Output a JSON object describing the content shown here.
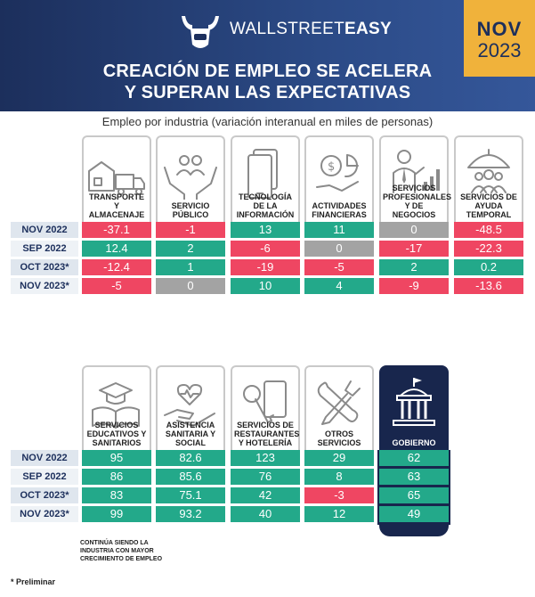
{
  "brand": {
    "prefix": "WALLSTREET",
    "suffix": "EASY"
  },
  "date": {
    "month": "NOV",
    "year": "2023"
  },
  "title": [
    "CREACIÓN DE EMPLEO SE ACELERA",
    "Y SUPERAN LAS EXPECTATIVAS"
  ],
  "subtitle": "Empleo por industria (variación interanual en miles de personas)",
  "row_labels": [
    "NOV 2022",
    "SEP 2022",
    "OCT 2023*",
    "NOV 2023*"
  ],
  "note": "Continúa siendo la industria con mayor crecimiento de empleo",
  "footnote": "* Preliminar",
  "colors": {
    "positive": "#23a98a",
    "negative": "#ef4662",
    "zero": "#a3a3a3",
    "navy": "#18264d",
    "gold": "#f0b23b"
  },
  "chart_data": {
    "type": "table",
    "rows": [
      "NOV 2022",
      "SEP 2022",
      "OCT 2023*",
      "NOV 2023*"
    ],
    "groups": [
      {
        "industries": [
          {
            "label": "Transporte y almacenaje",
            "icon": "truck-warehouse-icon",
            "values": [
              "-37.1",
              "12.4",
              "-12.4",
              "-5"
            ]
          },
          {
            "label": "Servicio público",
            "icon": "people-hands-icon",
            "values": [
              "-1",
              "2",
              "1",
              "0"
            ]
          },
          {
            "label": "Tecnología de la información",
            "icon": "devices-icon",
            "values": [
              "13",
              "-6",
              "-19",
              "10"
            ]
          },
          {
            "label": "Actividades financieras",
            "icon": "money-chart-icon",
            "values": [
              "11",
              "0",
              "-5",
              "4"
            ]
          },
          {
            "label": "Servicios profesionales y de negocios",
            "icon": "businessman-icon",
            "values": [
              "0",
              "-17",
              "2",
              "-9"
            ]
          },
          {
            "label": "Servicios de ayuda temporal",
            "icon": "umbrella-people-icon",
            "values": [
              "-48.5",
              "-22.3",
              "0.2",
              "-13.6"
            ]
          }
        ]
      },
      {
        "industries": [
          {
            "label": "Servicios educativos y sanitarios",
            "icon": "graduation-book-icon",
            "values": [
              "95",
              "86",
              "83",
              "99"
            ]
          },
          {
            "label": "Asistencia sanitaria y social",
            "icon": "heart-hand-icon",
            "values": [
              "82.6",
              "85.6",
              "75.1",
              "93.2"
            ]
          },
          {
            "label": "Servicios de restaurantes y hotelería",
            "icon": "key-card-icon",
            "values": [
              "123",
              "76",
              "42",
              "40"
            ]
          },
          {
            "label": "Otros servicios",
            "icon": "tools-icon",
            "values": [
              "29",
              "8",
              "-3",
              "12"
            ]
          },
          {
            "label": "Gobierno",
            "icon": "government-building-icon",
            "values": [
              "62",
              "63",
              "65",
              "49"
            ],
            "highlight": true
          }
        ]
      }
    ]
  }
}
